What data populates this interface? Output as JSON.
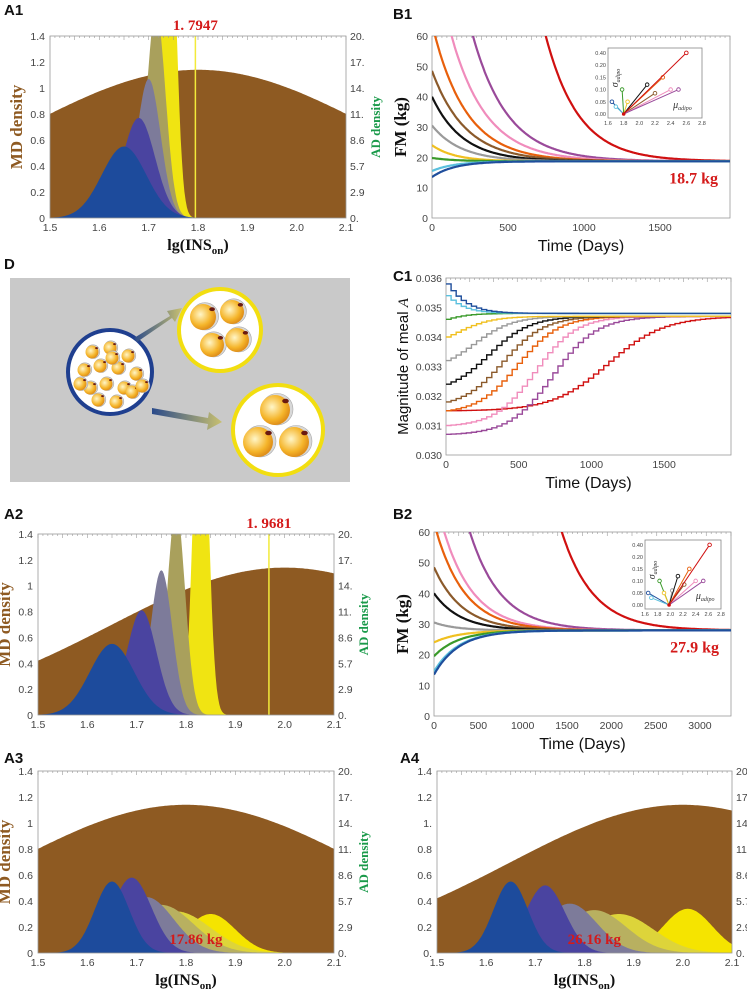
{
  "panel_labels": {
    "A1": "A1",
    "B1": "B1",
    "D": "D",
    "C1": "C1",
    "A2": "A2",
    "B2": "B2",
    "A3": "A3",
    "A4": "A4"
  },
  "colors": {
    "md_brown": "#8e5a22",
    "ad_green": "#1a9a4a",
    "annotation_red": "#d41a1a",
    "threshold_yellow": "#f2ea3a",
    "diagram_bg": "#c9c9c9",
    "small_cell_circle": "#1f3f8f",
    "large_cell_circle": "#f2de10"
  },
  "chart_data": [
    {
      "panel": "A1",
      "type": "area",
      "xlabel": "lg(INS",
      "xlabel_sub": "on",
      "xlabel_end": ")",
      "ylabel": "MD density",
      "y2label": "AD density",
      "xlim": [
        1.5,
        2.1
      ],
      "ylim": [
        0,
        1.4
      ],
      "grid": false,
      "xticks": [
        "1.5",
        "1.6",
        "1.7",
        "1.8",
        "1.9",
        "2.0",
        "2.1"
      ],
      "yticks": [
        "0",
        "0.2",
        "0.4",
        "0.6",
        "0.8",
        "1",
        "1.2",
        "1.4"
      ],
      "y2ticks": [
        "0.",
        "2.9",
        "5.7",
        "8.6",
        "11.",
        "14.",
        "17.",
        "20."
      ],
      "md_curve": {
        "peak_x": 1.8,
        "peak_y": 1.14,
        "sd": 0.357,
        "color": "#8e5a22"
      },
      "ad_series": [
        {
          "color": "#f0e412",
          "peak_x": 1.74,
          "peak_y": 3.0,
          "sd": 0.014
        },
        {
          "color": "#a9a05c",
          "peak_x": 1.715,
          "peak_y": 1.6,
          "sd": 0.019
        },
        {
          "color": "#7d7b9a",
          "peak_x": 1.7,
          "peak_y": 1.07,
          "sd": 0.024
        },
        {
          "color": "#4a44a0",
          "peak_x": 1.68,
          "peak_y": 0.77,
          "sd": 0.033
        },
        {
          "color": "#1d4b9c",
          "peak_x": 1.65,
          "peak_y": 0.55,
          "sd": 0.045
        }
      ],
      "threshold": {
        "x": 1.7947,
        "label": "1. 7947"
      }
    },
    {
      "panel": "B1",
      "type": "line",
      "xlabel": "Time (Days)",
      "ylabel": "FM  (kg)",
      "xlim": [
        0,
        1960
      ],
      "ylim": [
        0,
        60
      ],
      "grid": false,
      "xticks": [
        0,
        500,
        1000,
        1500
      ],
      "yticks": [
        0,
        10,
        20,
        30,
        40,
        50,
        60
      ],
      "steady_state": 18.7,
      "annotation": "18.7 kg",
      "series": [
        {
          "color": "#d01010",
          "y0": 1340,
          "tau": 216
        },
        {
          "color": "#9a4a9a",
          "y0": 152,
          "tau": 230
        },
        {
          "color": "#f08cbc",
          "y0": 91,
          "tau": 230
        },
        {
          "color": "#e8600c",
          "y0": 64,
          "tau": 220
        },
        {
          "color": "#8b5a2b",
          "y0": 48.5,
          "tau": 220
        },
        {
          "color": "#111111",
          "y0": 40,
          "tau": 200
        },
        {
          "color": "#9a9a9a",
          "y0": 30.5,
          "tau": 190
        },
        {
          "color": "#f0c020",
          "y0": 24,
          "tau": 150
        },
        {
          "color": "#3a9a2a",
          "y0": 19.8,
          "tau": 150
        },
        {
          "color": "#5bc0de",
          "y0": 15.5,
          "tau": 150
        },
        {
          "color": "#1f4e9c",
          "y0": 13.5,
          "tau": 150
        }
      ],
      "inset": {
        "xlabel": "μ",
        "xlabel_sub": "adipo",
        "ylabel": "σ",
        "ylabel_sub": "adipo",
        "xticks": [
          "1.6",
          "1.8",
          "2.0",
          "2.2",
          "2.4",
          "2.6",
          "2.8"
        ],
        "xlim": [
          1.6,
          2.8
        ],
        "yticks": [
          "0.00",
          "0.05",
          "0.10",
          "0.15",
          "0.20",
          "0.40"
        ],
        "origin": [
          1.8,
          0
        ],
        "points": [
          {
            "color": "#1f4e9c",
            "x": 1.65,
            "y": 0.05
          },
          {
            "color": "#5bc0de",
            "x": 1.7,
            "y": 0.03
          },
          {
            "color": "#3a9a2a",
            "x": 1.78,
            "y": 0.1
          },
          {
            "color": "#f0c020",
            "x": 1.85,
            "y": 0.05
          },
          {
            "color": "#111111",
            "x": 2.1,
            "y": 0.12
          },
          {
            "color": "#8b5a2b",
            "x": 2.2,
            "y": 0.085
          },
          {
            "color": "#e8600c",
            "x": 2.3,
            "y": 0.15
          },
          {
            "color": "#f08cbc",
            "x": 2.4,
            "y": 0.1
          },
          {
            "color": "#9a4a9a",
            "x": 2.5,
            "y": 0.1
          },
          {
            "color": "#d01010",
            "x": 2.6,
            "y": 0.4
          }
        ]
      }
    },
    {
      "panel": "C1",
      "type": "line",
      "xlabel": "Time (Days)",
      "ylabel": "Magnitude of meal ",
      "ylabel_italic": "A",
      "xlim": [
        0,
        1960
      ],
      "ylim": [
        0.03,
        0.036
      ],
      "grid": false,
      "xticks": [
        0,
        500,
        1000,
        1500
      ],
      "yticks": [
        "0.030",
        "0.031",
        "0.032",
        "0.033",
        "0.034",
        "0.035",
        "0.036"
      ],
      "series": [
        {
          "color": "#d01010",
          "start": 0.0315,
          "end": 0.0347,
          "mid": 1100,
          "width": 190
        },
        {
          "color": "#9a4a9a",
          "start": 0.0307,
          "end": 0.0347,
          "mid": 720,
          "width": 150
        },
        {
          "color": "#f08cbc",
          "start": 0.031,
          "end": 0.0347,
          "mid": 600,
          "width": 140
        },
        {
          "color": "#e8600c",
          "start": 0.0315,
          "end": 0.0347,
          "mid": 480,
          "width": 140
        },
        {
          "color": "#8b5a2b",
          "start": 0.0318,
          "end": 0.0347,
          "mid": 380,
          "width": 140
        },
        {
          "color": "#111111",
          "start": 0.0324,
          "end": 0.0347,
          "mid": 280,
          "width": 140
        },
        {
          "color": "#9a9a9a",
          "start": 0.0332,
          "end": 0.0347,
          "mid": 180,
          "width": 130
        },
        {
          "color": "#f0c020",
          "start": 0.034,
          "end": 0.0347,
          "mid": 60,
          "width": 120
        },
        {
          "color": "#3a9a2a",
          "start": 0.0346,
          "end": 0.0348,
          "mid": -100,
          "width": 100
        },
        {
          "color": "#5bc0de",
          "start": 0.0354,
          "end": 0.0348,
          "mid": -150,
          "width": 100
        },
        {
          "color": "#1f4e9c",
          "start": 0.0358,
          "end": 0.0348,
          "mid": -150,
          "width": 110
        }
      ]
    },
    {
      "panel": "A2",
      "type": "area",
      "xlabel": "",
      "ylabel": "MD density",
      "y2label": "AD density",
      "xlim": [
        1.5,
        2.1
      ],
      "ylim": [
        0,
        1.4
      ],
      "grid": false,
      "xticks": [
        "1.5",
        "1.6",
        "1.7",
        "1.8",
        "1.9",
        "2.0",
        "2.1"
      ],
      "yticks": [
        "0",
        "0.2",
        "0.4",
        "0.6",
        "0.8",
        "1",
        "1.2",
        "1.4"
      ],
      "y2ticks": [
        "0.",
        "2.9",
        "5.7",
        "8.6",
        "11.",
        "14.",
        "17.",
        "20."
      ],
      "md_curve": {
        "peak_x": 2.0,
        "peak_y": 1.14,
        "sd": 0.354,
        "color": "#8e5a22"
      },
      "ad_series": [
        {
          "color": "#f0e412",
          "peak_x": 1.83,
          "peak_y": 3.0,
          "sd": 0.014
        },
        {
          "color": "#a9a05c",
          "peak_x": 1.78,
          "peak_y": 1.6,
          "sd": 0.018
        },
        {
          "color": "#7d7b9a",
          "peak_x": 1.75,
          "peak_y": 1.12,
          "sd": 0.022
        },
        {
          "color": "#4a44a0",
          "peak_x": 1.71,
          "peak_y": 0.81,
          "sd": 0.03
        },
        {
          "color": "#1d4b9c",
          "peak_x": 1.65,
          "peak_y": 0.55,
          "sd": 0.045
        }
      ],
      "threshold": {
        "x": 1.9681,
        "label": "1. 9681"
      }
    },
    {
      "panel": "B2",
      "type": "line",
      "xlabel": "Time (Days)",
      "ylabel": "FM  (kg)",
      "xlim": [
        0,
        3350
      ],
      "ylim": [
        0,
        60
      ],
      "grid": false,
      "xticks": [
        0,
        500,
        1000,
        1500,
        2000,
        2500,
        3000
      ],
      "yticks": [
        0,
        10,
        20,
        30,
        40,
        50,
        60
      ],
      "steady_state": 27.9,
      "annotation": "27.9 kg",
      "series": [
        {
          "color": "#d01010",
          "y0": 1850,
          "tau": 357
        },
        {
          "color": "#9a4a9a",
          "y0": 130,
          "tau": 350
        },
        {
          "color": "#f08cbc",
          "y0": 73,
          "tau": 340
        },
        {
          "color": "#e8600c",
          "y0": 63,
          "tau": 330
        },
        {
          "color": "#8b5a2b",
          "y0": 48.5,
          "tau": 320
        },
        {
          "color": "#111111",
          "y0": 40,
          "tau": 300
        },
        {
          "color": "#9a9a9a",
          "y0": 30.5,
          "tau": 250
        },
        {
          "color": "#f0c020",
          "y0": 24,
          "tau": 280
        },
        {
          "color": "#3a9a2a",
          "y0": 19.5,
          "tau": 280
        },
        {
          "color": "#5bc0de",
          "y0": 14.5,
          "tau": 280
        },
        {
          "color": "#1f4e9c",
          "y0": 13.5,
          "tau": 280
        }
      ],
      "inset": {
        "xlabel": "μ",
        "xlabel_sub": "adipo",
        "ylabel": "σ",
        "ylabel_sub": "adipo",
        "xticks": [
          "1.6",
          "1.8",
          "2.0",
          "2.2",
          "2.4",
          "2.6",
          "2.8"
        ],
        "xlim": [
          1.6,
          2.8
        ],
        "yticks": [
          "0.00",
          "0.05",
          "0.10",
          "0.15",
          "0.20",
          "0.40"
        ],
        "origin": [
          1.98,
          0
        ],
        "points": [
          {
            "color": "#1f4e9c",
            "x": 1.65,
            "y": 0.05
          },
          {
            "color": "#5bc0de",
            "x": 1.7,
            "y": 0.03
          },
          {
            "color": "#3a9a2a",
            "x": 1.83,
            "y": 0.1
          },
          {
            "color": "#f0c020",
            "x": 1.9,
            "y": 0.05
          },
          {
            "color": "#9a9a9a",
            "x": 2.03,
            "y": 0.06
          },
          {
            "color": "#111111",
            "x": 2.12,
            "y": 0.12
          },
          {
            "color": "#8b5a2b",
            "x": 2.22,
            "y": 0.085
          },
          {
            "color": "#e8600c",
            "x": 2.3,
            "y": 0.15
          },
          {
            "color": "#f08cbc",
            "x": 2.4,
            "y": 0.1
          },
          {
            "color": "#9a4a9a",
            "x": 2.52,
            "y": 0.1
          },
          {
            "color": "#d01010",
            "x": 2.62,
            "y": 0.4
          }
        ]
      }
    },
    {
      "panel": "A3",
      "type": "area",
      "xlabel": "lg(INS",
      "xlabel_sub": "on",
      "xlabel_end": ")",
      "ylabel": "MD density",
      "y2label": "AD density",
      "xlim": [
        1.5,
        2.1
      ],
      "ylim": [
        0,
        1.4
      ],
      "grid": false,
      "xticks": [
        "1.5",
        "1.6",
        "1.7",
        "1.8",
        "1.9",
        "2.0",
        "2.1"
      ],
      "yticks": [
        "0",
        "0.2",
        "0.4",
        "0.6",
        "0.8",
        "1",
        "1.2",
        "1.4"
      ],
      "y2ticks": [
        "0.",
        "2.9",
        "5.7",
        "8.6",
        "11.",
        "14.",
        "17.",
        "20."
      ],
      "md_curve": {
        "peak_x": 1.8,
        "peak_y": 1.14,
        "sd": 0.357,
        "color": "#8e5a22"
      },
      "ad_series": [
        {
          "color": "#f5e400",
          "peak_x": 1.85,
          "peak_y": 0.3,
          "sd": 0.05
        },
        {
          "color": "#ddd43a",
          "peak_x": 1.78,
          "peak_y": 0.32,
          "sd": 0.07
        },
        {
          "color": "#b8b060",
          "peak_x": 1.75,
          "peak_y": 0.37,
          "sd": 0.065
        },
        {
          "color": "#7d7b9a",
          "peak_x": 1.72,
          "peak_y": 0.43,
          "sd": 0.055
        },
        {
          "color": "#4a44a0",
          "peak_x": 1.69,
          "peak_y": 0.58,
          "sd": 0.04
        },
        {
          "color": "#1d4b9c",
          "peak_x": 1.65,
          "peak_y": 0.55,
          "sd": 0.035
        }
      ],
      "annotation": "17.86 kg"
    },
    {
      "panel": "A4",
      "type": "area",
      "xlabel": "lg(INS",
      "xlabel_sub": "on",
      "xlabel_end": ")",
      "ylabel": "",
      "y2label": "",
      "xlim": [
        1.5,
        2.1
      ],
      "ylim": [
        0,
        1.4
      ],
      "grid": false,
      "xticks": [
        "1.5",
        "1.6",
        "1.7",
        "1.8",
        "1.9",
        "2.0",
        "2.1"
      ],
      "yticks": [
        "0.",
        "0.2",
        "0.4",
        "0.6",
        "0.8",
        "1.",
        "1.2",
        "1.4"
      ],
      "y2ticks": [
        "0.",
        "2.9",
        "5.7",
        "8.6",
        "11.",
        "14.",
        "17.",
        "20."
      ],
      "md_curve": {
        "peak_x": 2.0,
        "peak_y": 1.14,
        "sd": 0.354,
        "color": "#8e5a22"
      },
      "ad_series": [
        {
          "color": "#f5e400",
          "peak_x": 2.01,
          "peak_y": 0.34,
          "sd": 0.05
        },
        {
          "color": "#ddd43a",
          "peak_x": 1.87,
          "peak_y": 0.3,
          "sd": 0.07
        },
        {
          "color": "#b8b060",
          "peak_x": 1.82,
          "peak_y": 0.33,
          "sd": 0.065
        },
        {
          "color": "#7d7b9a",
          "peak_x": 1.77,
          "peak_y": 0.38,
          "sd": 0.055
        },
        {
          "color": "#4a44a0",
          "peak_x": 1.72,
          "peak_y": 0.52,
          "sd": 0.04
        },
        {
          "color": "#1d4b9c",
          "peak_x": 1.65,
          "peak_y": 0.55,
          "sd": 0.035
        }
      ],
      "annotation": "26.16 kg"
    }
  ]
}
